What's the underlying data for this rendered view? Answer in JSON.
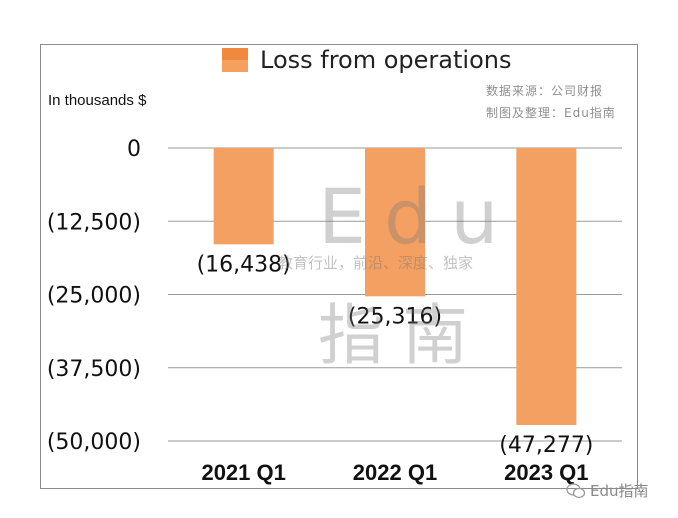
{
  "legend": {
    "label": "Loss from operations",
    "color": "#f0883e"
  },
  "unit_label": "In thousands $",
  "source_lines": [
    "数据来源：公司财报",
    "制图及整理：Edu指南"
  ],
  "watermark": {
    "main": "Edu",
    "sub": "教育行业，前沿、深度、独家",
    "cn": "指南"
  },
  "footer_mark": "Edu指南",
  "chart_data": {
    "type": "bar",
    "categories": [
      "2021 Q1",
      "2022 Q1",
      "2023 Q1"
    ],
    "series": [
      {
        "name": "Loss from operations",
        "values": [
          -16438,
          -25316,
          -47277
        ]
      }
    ],
    "data_labels": [
      "(16,438)",
      "(25,316)",
      "(47,277)"
    ],
    "y_ticks": [
      0,
      -12500,
      -25000,
      -37500,
      -50000
    ],
    "y_tick_labels": [
      "0",
      "(12,500)",
      "(25,000)",
      "(37,500)",
      "(50,000)"
    ],
    "ylim": [
      -50000,
      0
    ],
    "grid": true,
    "legend_position": "top",
    "bar_color": "#f4a062"
  }
}
